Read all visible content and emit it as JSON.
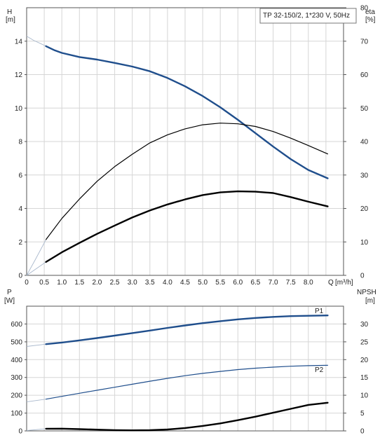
{
  "chart_data": [
    {
      "type": "line",
      "legend": "TP 32-150/2, 1*230 V, 50Hz",
      "x_label": "Q",
      "x_unit": "[m³/h]",
      "xlim": [
        0,
        9.0
      ],
      "x_ticks": [
        "0",
        "0.5",
        "1.0",
        "1.5",
        "2.0",
        "2.5",
        "3.0",
        "3.5",
        "4.0",
        "4.5",
        "5.0",
        "5.5",
        "6.0",
        "6.5",
        "7.0",
        "7.5",
        "8.0"
      ],
      "y_left": {
        "label": "H",
        "unit": "[m]",
        "lim": [
          0,
          16
        ],
        "ticks": [
          "0",
          "2",
          "4",
          "6",
          "8",
          "10",
          "12",
          "14"
        ]
      },
      "y_right": {
        "label": "eta",
        "unit": "[%]",
        "lim": [
          0,
          80
        ],
        "ticks": [
          "0",
          "10",
          "20",
          "30",
          "40",
          "50",
          "60",
          "70",
          "80"
        ]
      },
      "extension": {
        "H": [
          [
            0,
            14.3
          ],
          [
            0.2,
            14.05
          ],
          [
            0.4,
            13.85
          ],
          [
            0.55,
            13.7
          ]
        ],
        "eta": [
          [
            0,
            0
          ],
          [
            0.25,
            4.8
          ],
          [
            0.55,
            10.7
          ]
        ],
        "eta_p": [
          [
            0,
            0
          ],
          [
            0.55,
            4.0
          ]
        ]
      },
      "series": [
        {
          "id": "H",
          "axis": "left",
          "color": "#1f4e8c",
          "width": 2.4,
          "points": [
            [
              0.55,
              13.7
            ],
            [
              0.8,
              13.45
            ],
            [
              1.0,
              13.3
            ],
            [
              1.5,
              13.05
            ],
            [
              2.0,
              12.9
            ],
            [
              2.5,
              12.7
            ],
            [
              3.0,
              12.48
            ],
            [
              3.5,
              12.2
            ],
            [
              4.0,
              11.8
            ],
            [
              4.5,
              11.3
            ],
            [
              5.0,
              10.72
            ],
            [
              5.5,
              10.05
            ],
            [
              6.0,
              9.3
            ],
            [
              6.5,
              8.5
            ],
            [
              7.0,
              7.7
            ],
            [
              7.5,
              6.95
            ],
            [
              8.0,
              6.3
            ],
            [
              8.55,
              5.8
            ]
          ]
        },
        {
          "id": "eta",
          "axis": "right",
          "color": "#000000",
          "width": 1.2,
          "points": [
            [
              0.55,
              10.7
            ],
            [
              1.0,
              17.0
            ],
            [
              1.5,
              22.8
            ],
            [
              2.0,
              28.1
            ],
            [
              2.5,
              32.5
            ],
            [
              3.0,
              36.2
            ],
            [
              3.5,
              39.6
            ],
            [
              4.0,
              42.0
            ],
            [
              4.5,
              43.8
            ],
            [
              5.0,
              45.0
            ],
            [
              5.5,
              45.5
            ],
            [
              6.0,
              45.3
            ],
            [
              6.5,
              44.5
            ],
            [
              7.0,
              43.0
            ],
            [
              7.5,
              41.0
            ],
            [
              8.0,
              38.8
            ],
            [
              8.55,
              36.3
            ]
          ]
        },
        {
          "id": "eta_p",
          "axis": "right",
          "color": "#000000",
          "width": 2.4,
          "points": [
            [
              0.55,
              4.0
            ],
            [
              1.0,
              6.9
            ],
            [
              1.5,
              9.7
            ],
            [
              2.0,
              12.4
            ],
            [
              2.5,
              14.9
            ],
            [
              3.0,
              17.3
            ],
            [
              3.5,
              19.4
            ],
            [
              4.0,
              21.2
            ],
            [
              4.5,
              22.7
            ],
            [
              5.0,
              24.0
            ],
            [
              5.5,
              24.8
            ],
            [
              6.0,
              25.1
            ],
            [
              6.5,
              25.0
            ],
            [
              7.0,
              24.6
            ],
            [
              7.5,
              23.4
            ],
            [
              8.0,
              22.0
            ],
            [
              8.55,
              20.6
            ]
          ]
        }
      ]
    },
    {
      "type": "line",
      "xlim": [
        0,
        9.0
      ],
      "y_left": {
        "label": "P",
        "unit": "[W]",
        "lim": [
          0,
          700
        ],
        "ticks": [
          "0",
          "100",
          "200",
          "300",
          "400",
          "500",
          "600"
        ]
      },
      "y_right": {
        "label": "NPSH",
        "unit": "[m]",
        "lim": [
          0,
          35
        ],
        "ticks": [
          "0",
          "5",
          "10",
          "15",
          "20",
          "25",
          "30"
        ]
      },
      "extension": {
        "P1": [
          [
            0,
            474
          ],
          [
            0.55,
            487
          ]
        ],
        "P2": [
          [
            0,
            163
          ],
          [
            0.55,
            178
          ]
        ],
        "NPSH": [
          [
            0,
            0.1
          ],
          [
            0.55,
            0.6
          ]
        ]
      },
      "series": [
        {
          "id": "P1",
          "name": "P1",
          "axis": "left",
          "color": "#1f4e8c",
          "width": 2.4,
          "points": [
            [
              0.55,
              487
            ],
            [
              1.0,
              496
            ],
            [
              1.5,
              508
            ],
            [
              2.0,
              521
            ],
            [
              2.5,
              535
            ],
            [
              3.0,
              549
            ],
            [
              3.5,
              563
            ],
            [
              4.0,
              578
            ],
            [
              4.5,
              592
            ],
            [
              5.0,
              605
            ],
            [
              5.5,
              616
            ],
            [
              6.0,
              626
            ],
            [
              6.5,
              634
            ],
            [
              7.0,
              640
            ],
            [
              7.5,
              644
            ],
            [
              8.0,
              646
            ],
            [
              8.55,
              648
            ]
          ]
        },
        {
          "id": "P2",
          "name": "P2",
          "axis": "left",
          "color": "#1f4e8c",
          "width": 1.2,
          "points": [
            [
              0.55,
              178
            ],
            [
              1.0,
              194
            ],
            [
              1.5,
              211
            ],
            [
              2.0,
              228
            ],
            [
              2.5,
              245
            ],
            [
              3.0,
              262
            ],
            [
              3.5,
              279
            ],
            [
              4.0,
              295
            ],
            [
              4.5,
              310
            ],
            [
              5.0,
              323
            ],
            [
              5.5,
              334
            ],
            [
              6.0,
              344
            ],
            [
              6.5,
              352
            ],
            [
              7.0,
              358
            ],
            [
              7.5,
              363
            ],
            [
              8.0,
              366
            ],
            [
              8.55,
              368
            ]
          ]
        },
        {
          "id": "NPSH",
          "axis": "right",
          "color": "#000000",
          "width": 2.4,
          "points": [
            [
              0.55,
              0.6
            ],
            [
              1.0,
              0.62
            ],
            [
              1.5,
              0.5
            ],
            [
              2.0,
              0.35
            ],
            [
              2.5,
              0.22
            ],
            [
              3.0,
              0.15
            ],
            [
              3.5,
              0.2
            ],
            [
              4.0,
              0.4
            ],
            [
              4.5,
              0.8
            ],
            [
              5.0,
              1.4
            ],
            [
              5.5,
              2.1
            ],
            [
              6.0,
              3.0
            ],
            [
              6.5,
              4.0
            ],
            [
              7.0,
              5.1
            ],
            [
              7.5,
              6.2
            ],
            [
              8.0,
              7.3
            ],
            [
              8.55,
              7.9
            ]
          ]
        }
      ]
    }
  ]
}
